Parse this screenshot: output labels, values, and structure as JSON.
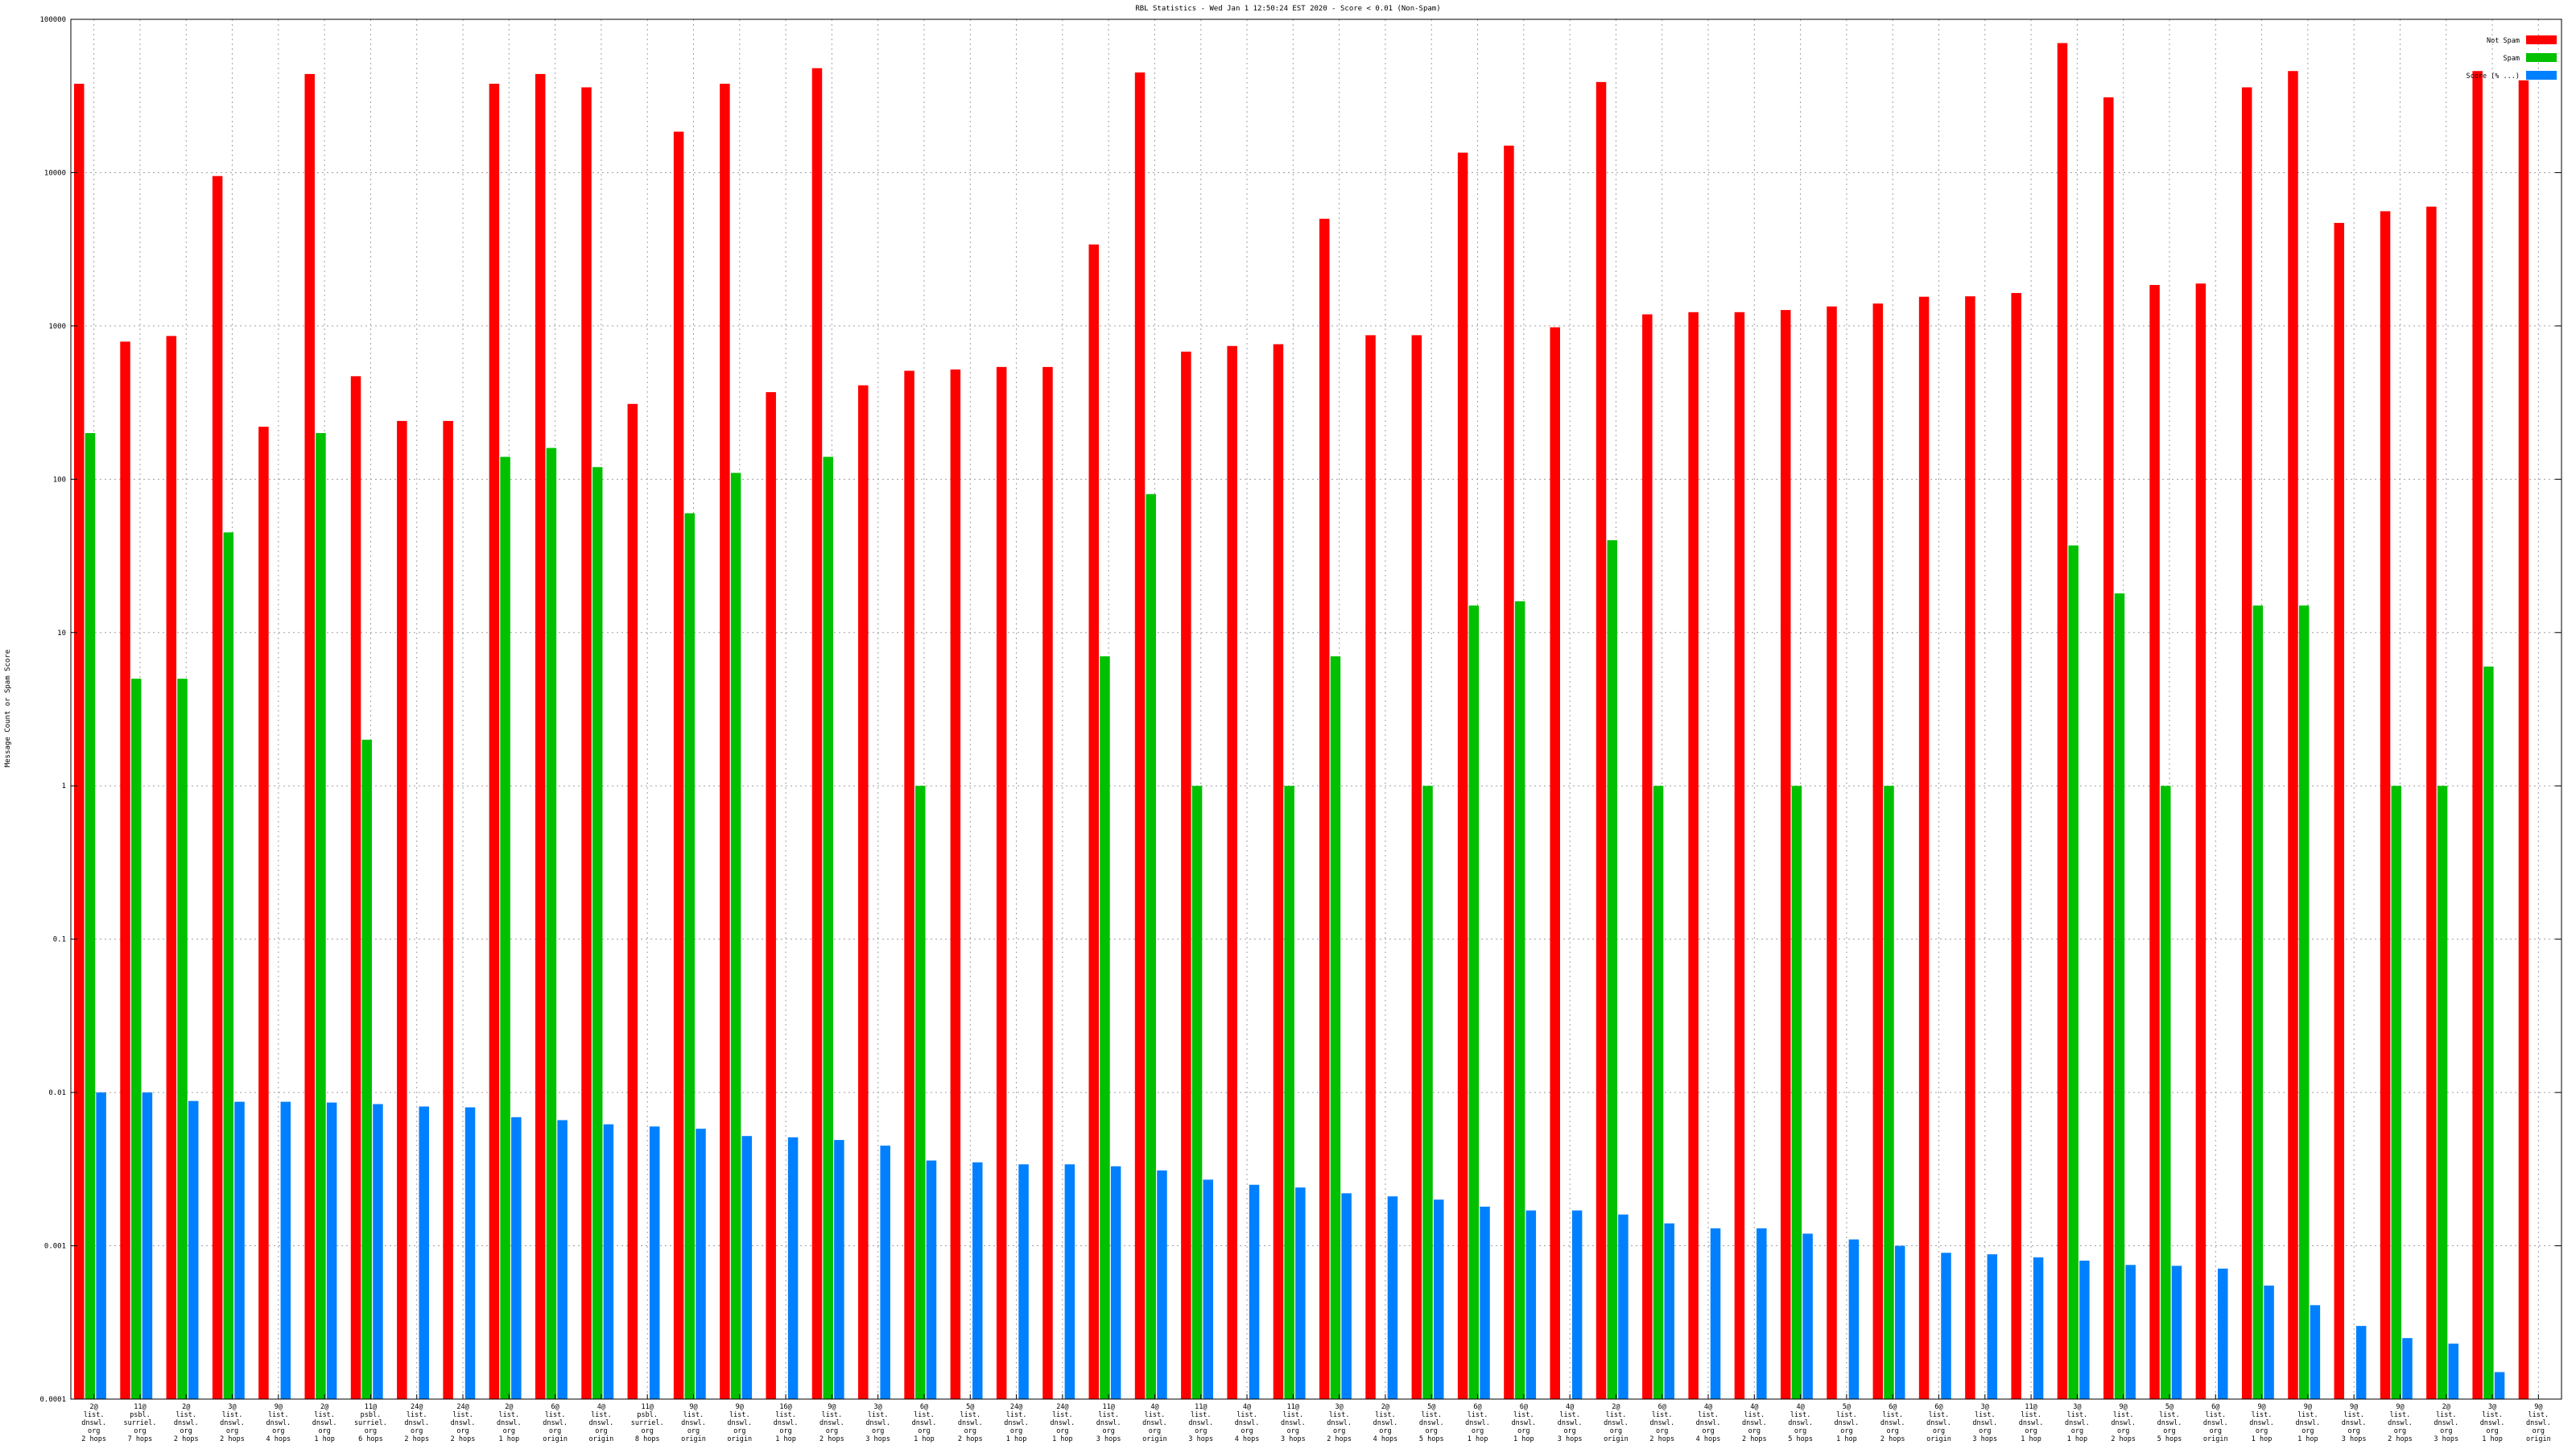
{
  "chart_data": {
    "type": "bar",
    "title": "RBL Statistics - Wed Jan  1 12:50:24 EST 2020 - Score < 0.01 (Non-Spam)",
    "ylabel": "Message Count or Spam Score",
    "xlabel": "",
    "yscale": "log",
    "ylim": [
      0.0001,
      100000
    ],
    "yticks": [
      "0.0001",
      "0.001",
      "0.01",
      "0.1",
      "1",
      "10",
      "100",
      "1000",
      "10000",
      "100000"
    ],
    "grid": true,
    "legend_position": "top-right",
    "categories": [
      "2@ list. dnswl. org 2 hops",
      "11@ psbl. surriel. org 7 hops",
      "2@ list. dnswl. org 2 hops",
      "3@ list. dnswl. org 2 hops",
      "9@ list. dnswl. org 4 hops",
      "2@ list. dnswl. org 1 hop",
      "11@ psbl. surriel. org 6 hops",
      "24@ list. dnswl. org 2 hops",
      "24@ list. dnswl. org 2 hops",
      "2@ list. dnswl. org 1 hop",
      "6@ list. dnswl. org origin",
      "4@ list. dnswl. org origin",
      "11@ psbl. surriel. org 8 hops",
      "9@ list. dnswl. org origin",
      "9@ list. dnswl. org origin",
      "16@ list. dnswl. org 1 hop",
      "9@ list. dnswl. org 2 hops",
      "3@ list. dnswl. org 3 hops",
      "6@ list. dnswl. org 1 hop",
      "5@ list. dnswl. org 2 hops",
      "24@ list. dnswl. org 1 hop",
      "24@ list. dnswl. org 1 hop",
      "11@ list. dnswl. org 3 hops",
      "4@ list. dnswl. org origin",
      "11@ list. dnswl. org 3 hops",
      "4@ list. dnswl. org 4 hops",
      "11@ list. dnswl. org 3 hops",
      "3@ list. dnswl. org 2 hops",
      "2@ list. dnswl. org 4 hops",
      "5@ list. dnswl. org 5 hops",
      "6@ list. dnswl. org 1 hop",
      "6@ list. dnswl. org 1 hop",
      "4@ list. dnswl. org 3 hops",
      "2@ list. dnswl. org origin",
      "6@ list. dnswl. org 2 hops",
      "4@ list. dnswl. org 4 hops",
      "4@ list. dnswl. org 2 hops",
      "4@ list. dnswl. org 5 hops",
      "5@ list. dnswl. org 1 hop",
      "6@ list. dnswl. org 2 hops",
      "6@ list. dnswl. org origin",
      "3@ list. dnswl. org 3 hops",
      "11@ list. dnswl. org 1 hop",
      "3@ list. dnswl. org 1 hop",
      "9@ list. dnswl. org 2 hops",
      "5@ list. dnswl. org 5 hops",
      "6@ list. dnswl. org origin",
      "9@ list. dnswl. org 1 hop",
      "9@ list. dnswl. org 1 hop",
      "9@ list. dnswl. org 3 hops",
      "9@ list. dnswl. org 2 hops",
      "2@ list. dnswl. org 3 hops",
      "3@ list. dnswl. org 1 hop",
      "9@ list. dnswl. org origin"
    ],
    "series": [
      {
        "name": "Not Spam",
        "color": "#ff0000",
        "values": [
          38000,
          790,
          860,
          9500,
          220,
          44000,
          470,
          240,
          240,
          38000,
          44000,
          36000,
          310,
          18500,
          38000,
          370,
          48000,
          410,
          510,
          520,
          540,
          540,
          3400,
          45000,
          680,
          740,
          760,
          5000,
          870,
          870,
          13500,
          15000,
          980,
          39000,
          1190,
          1230,
          1230,
          1270,
          1340,
          1400,
          1550,
          1560,
          1640,
          70000,
          31000,
          1850,
          1890,
          36000,
          46000,
          4700,
          5600,
          6000,
          46000,
          40000
        ]
      },
      {
        "name": "Spam",
        "color": "#00c000",
        "values": [
          200,
          5,
          5,
          45,
          0,
          200,
          2,
          0,
          0,
          140,
          160,
          120,
          0,
          60,
          110,
          0,
          140,
          0,
          1,
          0,
          0,
          0,
          7,
          80,
          1,
          0,
          1,
          7,
          0,
          1,
          15,
          16,
          0,
          40,
          1,
          0,
          0,
          1,
          0,
          1,
          0,
          0,
          0,
          37,
          18,
          1,
          0,
          15,
          15,
          0,
          1,
          1,
          6,
          0
        ]
      },
      {
        "name": "Score (% ...)",
        "color": "#0080ff",
        "values": [
          0.01,
          0.01,
          0.0088,
          0.0087,
          0.0087,
          0.0086,
          0.0084,
          0.0081,
          0.008,
          0.0069,
          0.0066,
          0.0062,
          0.006,
          0.0058,
          0.0052,
          0.0051,
          0.0049,
          0.0045,
          0.0036,
          0.0035,
          0.0034,
          0.0034,
          0.0033,
          0.0031,
          0.0027,
          0.0025,
          0.0024,
          0.0022,
          0.0021,
          0.002,
          0.0018,
          0.0017,
          0.0017,
          0.0016,
          0.0014,
          0.0013,
          0.0013,
          0.0012,
          0.0011,
          0.001,
          0.0009,
          0.00088,
          0.00084,
          0.0008,
          0.00075,
          0.00074,
          0.00071,
          0.00055,
          0.00041,
          0.0003,
          0.00025,
          0.00023,
          0.00015,
          0
        ]
      }
    ]
  }
}
